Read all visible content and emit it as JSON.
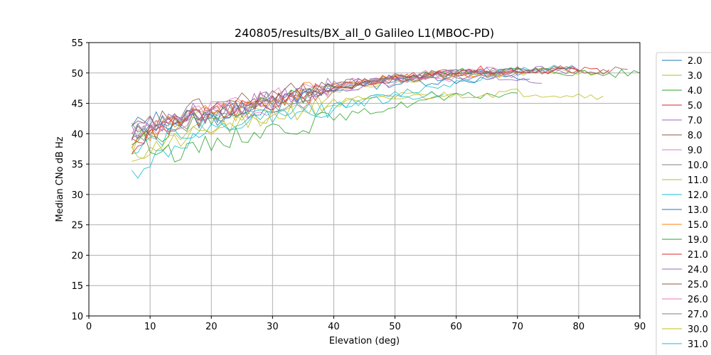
{
  "chart_data": {
    "type": "line",
    "title": "240805/results/BX_all_0 Galileo L1(MBOC-PD)",
    "xlabel": "Elevation (deg)",
    "ylabel": "Median CNo dB Hz",
    "xlim": [
      0,
      90
    ],
    "ylim": [
      10,
      55
    ],
    "xticks": [
      0,
      10,
      20,
      30,
      40,
      50,
      60,
      70,
      80,
      90
    ],
    "yticks": [
      10,
      15,
      20,
      25,
      30,
      35,
      40,
      45,
      50,
      55
    ],
    "grid": true,
    "legend_position": "right, outside plot (clipped at bottom)",
    "series": [
      {
        "name": "2.0",
        "color": "#1f77b4",
        "x": [
          7,
          10,
          15,
          20,
          25,
          30,
          35,
          40,
          45,
          50,
          55,
          60,
          65,
          70,
          72
        ],
        "y": [
          39.8,
          41.0,
          42.3,
          43.2,
          44.3,
          45.3,
          46.4,
          47.6,
          48.3,
          49.0,
          49.2,
          49.6,
          49.9,
          50.1,
          50.0
        ]
      },
      {
        "name": "3.0",
        "color": "#bcbd22",
        "x": [
          7,
          10,
          15,
          20,
          25,
          30,
          35,
          40,
          45,
          50,
          55,
          60,
          65,
          70,
          75,
          80,
          84
        ],
        "y": [
          38.0,
          40.0,
          41.8,
          42.8,
          43.8,
          44.8,
          45.8,
          47.2,
          48.2,
          48.8,
          49.3,
          49.8,
          50.0,
          50.2,
          50.3,
          50.2,
          50.0
        ]
      },
      {
        "name": "4.0",
        "color": "#2ca02c",
        "x": [
          7,
          10,
          15,
          20,
          25,
          30,
          35,
          40,
          45,
          50,
          55,
          60,
          65,
          70,
          75,
          80,
          85,
          90
        ],
        "y": [
          40.5,
          39.5,
          41.3,
          42.8,
          44.0,
          45.0,
          46.2,
          47.4,
          48.4,
          49.2,
          49.7,
          50.1,
          50.3,
          50.4,
          50.3,
          50.0,
          49.8,
          50.0
        ]
      },
      {
        "name": "5.0",
        "color": "#d62728",
        "x": [
          7,
          10,
          15,
          20,
          25,
          30,
          35,
          40,
          45,
          50,
          55,
          60,
          65,
          70,
          75,
          80,
          85
        ],
        "y": [
          38.5,
          40.6,
          42.0,
          43.0,
          44.2,
          45.2,
          46.3,
          47.6,
          48.5,
          49.3,
          49.8,
          50.2,
          50.5,
          50.6,
          50.5,
          50.4,
          50.5
        ]
      },
      {
        "name": "7.0",
        "color": "#9467bd",
        "x": [
          7,
          10,
          15,
          20,
          25,
          30,
          35,
          40,
          45,
          50,
          55,
          60,
          65,
          70,
          74
        ],
        "y": [
          40.0,
          41.2,
          42.6,
          43.6,
          44.6,
          45.6,
          46.6,
          47.8,
          48.6,
          49.2,
          49.5,
          49.7,
          49.3,
          48.8,
          48.3
        ]
      },
      {
        "name": "8.0",
        "color": "#8c564b",
        "x": [
          7,
          10,
          15,
          20,
          25,
          30,
          35,
          40,
          45,
          50,
          55,
          60,
          65,
          70,
          75,
          80,
          85,
          88
        ],
        "y": [
          39.5,
          40.8,
          42.3,
          43.6,
          44.6,
          45.5,
          46.5,
          47.7,
          48.5,
          49.1,
          49.6,
          50.0,
          50.2,
          50.4,
          50.5,
          50.6,
          50.6,
          50.6
        ]
      },
      {
        "name": "9.0",
        "color": "#e377c2",
        "x": [
          7,
          10,
          15,
          20,
          25,
          30,
          35,
          40,
          45,
          50,
          55,
          60,
          65,
          70
        ],
        "y": [
          40.8,
          41.5,
          43.0,
          44.0,
          44.8,
          45.8,
          46.8,
          48.0,
          48.8,
          49.4,
          49.8,
          50.2,
          50.4,
          50.6
        ]
      },
      {
        "name": "10.0",
        "color": "#7f7f7f",
        "x": [
          7,
          10,
          15,
          20,
          25,
          30,
          35,
          40,
          45,
          50,
          55,
          60,
          65,
          70
        ],
        "y": [
          39.0,
          40.5,
          42.0,
          43.2,
          44.2,
          45.2,
          46.2,
          47.5,
          48.3,
          49.0,
          49.5,
          49.8,
          50.0,
          50.1
        ]
      },
      {
        "name": "11.0",
        "color": "#bcbd22",
        "x": [
          7,
          10,
          15,
          20,
          25,
          30,
          35,
          40,
          45,
          50,
          55,
          60
        ],
        "y": [
          36.5,
          37.5,
          39.5,
          40.8,
          42.0,
          43.2,
          44.3,
          45.2,
          45.8,
          46.2,
          46.4,
          46.6
        ]
      },
      {
        "name": "12.0",
        "color": "#17becf",
        "x": [
          7,
          10,
          15,
          20,
          25,
          30,
          35,
          40,
          45,
          50,
          55,
          60,
          65,
          70,
          75,
          79
        ],
        "y": [
          33.2,
          35.6,
          38.2,
          40.0,
          41.3,
          42.6,
          43.5,
          44.4,
          45.5,
          46.5,
          47.5,
          48.5,
          49.6,
          50.5,
          51.0,
          51.3
        ]
      },
      {
        "name": "13.0",
        "color": "#1f77b4",
        "x": [
          7,
          10,
          15,
          20,
          25,
          30,
          35,
          40,
          45,
          50,
          55,
          60,
          65,
          70,
          72
        ],
        "y": [
          41.0,
          42.5,
          41.8,
          42.5,
          43.8,
          44.8,
          45.8,
          47.0,
          47.8,
          48.3,
          48.6,
          48.8,
          49.0,
          49.2,
          49.0
        ]
      },
      {
        "name": "15.0",
        "color": "#ff7f0e",
        "x": [
          7,
          10,
          15,
          20,
          25,
          30,
          35,
          40,
          45,
          50,
          55,
          60,
          65,
          70
        ],
        "y": [
          38.0,
          40.2,
          42.5,
          43.8,
          44.8,
          45.8,
          46.8,
          47.8,
          48.5,
          49.0,
          49.4,
          49.7,
          49.9,
          50.0
        ]
      },
      {
        "name": "19.0",
        "color": "#2ca02c",
        "x": [
          7,
          10,
          15,
          20,
          25,
          30,
          35,
          40,
          45,
          50,
          55,
          60,
          65,
          70
        ],
        "y": [
          39.0,
          38.5,
          36.5,
          38.5,
          39.8,
          40.8,
          41.5,
          42.5,
          43.5,
          44.5,
          45.5,
          46.0,
          46.4,
          46.7
        ]
      },
      {
        "name": "21.0",
        "color": "#d62728",
        "x": [
          7,
          10,
          15,
          20,
          25,
          30,
          35,
          40,
          45,
          50,
          55,
          60,
          65,
          70,
          75,
          80
        ],
        "y": [
          38.0,
          40.0,
          42.2,
          43.3,
          44.3,
          45.2,
          46.2,
          47.4,
          48.3,
          49.0,
          49.6,
          50.0,
          50.3,
          50.5,
          50.6,
          50.5
        ]
      },
      {
        "name": "24.0",
        "color": "#9467bd",
        "x": [
          7,
          10,
          15,
          20,
          25,
          30,
          35,
          40,
          45,
          50,
          55,
          60,
          65,
          70,
          75,
          80
        ],
        "y": [
          40.0,
          41.5,
          43.2,
          44.2,
          45.0,
          46.0,
          47.0,
          48.0,
          48.7,
          49.2,
          49.6,
          50.0,
          50.2,
          50.4,
          50.5,
          50.5
        ]
      },
      {
        "name": "25.0",
        "color": "#8c564b",
        "x": [
          7,
          10,
          15,
          20,
          25,
          30,
          35,
          40,
          45,
          50,
          55,
          60,
          65,
          70,
          75,
          80
        ],
        "y": [
          40.5,
          41.8,
          43.5,
          44.8,
          45.5,
          46.3,
          47.2,
          48.0,
          48.7,
          49.3,
          49.7,
          50.0,
          50.2,
          50.4,
          50.5,
          50.4
        ]
      },
      {
        "name": "26.0",
        "color": "#e377c2",
        "x": [
          7,
          10,
          15,
          20,
          25,
          30,
          35,
          40,
          45,
          50,
          55,
          60,
          65,
          70
        ],
        "y": [
          39.8,
          40.5,
          41.8,
          42.8,
          43.8,
          44.8,
          45.8,
          47.0,
          47.8,
          48.4,
          48.9,
          49.3,
          49.6,
          49.8
        ]
      },
      {
        "name": "27.0",
        "color": "#7f7f7f",
        "x": [
          7,
          10,
          15,
          20,
          25,
          30,
          35,
          40,
          45,
          50,
          55,
          60,
          65,
          70
        ],
        "y": [
          39.5,
          40.8,
          42.2,
          43.2,
          44.2,
          45.2,
          46.2,
          47.4,
          48.2,
          48.8,
          49.2,
          49.6,
          49.8,
          50.0
        ]
      },
      {
        "name": "30.0",
        "color": "#bcbd22",
        "x": [
          7,
          10,
          15,
          20,
          25,
          30,
          35,
          40,
          45,
          50,
          55,
          60,
          65,
          70,
          75,
          80,
          84
        ],
        "y": [
          36.2,
          37.2,
          39.0,
          40.5,
          41.8,
          43.0,
          44.0,
          44.8,
          45.3,
          45.8,
          46.2,
          46.4,
          46.6,
          46.8,
          46.6,
          46.4,
          46.2
        ]
      },
      {
        "name": "31.0",
        "color": "#17becf",
        "x": [
          7,
          10,
          15,
          20,
          25,
          30,
          35,
          40,
          45,
          50,
          55,
          58
        ],
        "y": [
          38.0,
          39.0,
          40.5,
          41.5,
          42.5,
          43.2,
          43.8,
          44.5,
          45.2,
          45.8,
          46.3,
          46.5
        ]
      }
    ]
  }
}
